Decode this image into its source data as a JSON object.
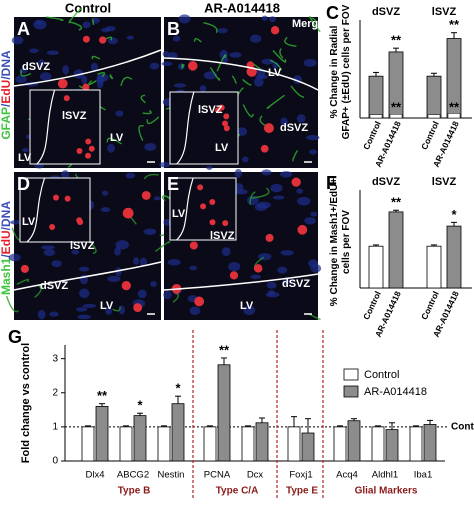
{
  "column_headers": [
    "Control",
    "AR-A014418"
  ],
  "row_labels": [
    [
      {
        "text": "GFAP",
        "color": "#3ec43e"
      },
      {
        "text": "/",
        "color": "#3b4fb8"
      },
      {
        "text": "EdU",
        "color": "#e0202a"
      },
      {
        "text": "/DNA",
        "color": "#3b4fb8"
      }
    ],
    [
      {
        "text": "Mash1",
        "color": "#3ec43e"
      },
      {
        "text": "/",
        "color": "#3b4fb8"
      },
      {
        "text": "EdU",
        "color": "#e0202a"
      },
      {
        "text": "/DNA",
        "color": "#3b4fb8"
      }
    ]
  ],
  "image_panels": [
    {
      "letter": "A",
      "texts": [
        "dSVZ",
        "lSVZ",
        "LV",
        "LV"
      ]
    },
    {
      "letter": "B",
      "texts": [
        "Merge",
        "lSVZ",
        "dSVZ",
        "LV",
        "LV"
      ]
    },
    {
      "letter": "D",
      "texts": [
        "LV",
        "lSVZ",
        "dSVZ",
        "LV"
      ]
    },
    {
      "letter": "E",
      "texts": [
        "LV",
        "lSVZ",
        "dSVZ",
        "LV"
      ]
    }
  ],
  "chart_data": [
    {
      "type": "bar",
      "letter": "C",
      "ylabel": [
        "% Change in Radial",
        "GFAP+ (±EdU) cells per FOV"
      ],
      "categories": [
        "Control",
        "AR-A014418"
      ],
      "colors": [
        "#8c8c8c",
        "#8c8c8c"
      ],
      "inner_color": "#ffffff",
      "ylim": [
        0,
        220
      ],
      "groups": [
        {
          "name": "dSVZ",
          "values": [
            100,
            158
          ],
          "errors": [
            9,
            9
          ],
          "inner_values": [
            8,
            9
          ],
          "annotations": [
            null,
            "**"
          ],
          "inner_annotations": [
            null,
            "**"
          ]
        },
        {
          "name": "lSVZ",
          "values": [
            100,
            190
          ],
          "errors": [
            7,
            14
          ],
          "inner_values": [
            8,
            11
          ],
          "annotations": [
            null,
            "**"
          ],
          "inner_annotations": [
            null,
            "**"
          ]
        }
      ]
    },
    {
      "type": "bar",
      "letter": "F",
      "ylabel": [
        "% Change in Mash1+/EdU+",
        "cells per FOV"
      ],
      "categories": [
        "Control",
        "AR-A014418"
      ],
      "colors": [
        "#ffffff",
        "#8c8c8c"
      ],
      "ylim": [
        0,
        220
      ],
      "groups": [
        {
          "name": "dSVZ",
          "values": [
            100,
            182
          ],
          "errors": [
            3,
            4
          ],
          "annotations": [
            null,
            "**"
          ]
        },
        {
          "name": "lSVZ",
          "values": [
            100,
            148
          ],
          "errors": [
            3,
            9
          ],
          "annotations": [
            null,
            "*"
          ]
        }
      ]
    },
    {
      "type": "grouped_bar",
      "letter": "G",
      "ylabel": "Fold change vs control",
      "groups": [
        {
          "name": "Type B",
          "categories": [
            "Dlx4",
            "ABCG2",
            "Nestin"
          ]
        },
        {
          "name": "Type C/A",
          "categories": [
            "PCNA",
            "Dcx"
          ]
        },
        {
          "name": "Type E",
          "categories": [
            "Foxj1"
          ]
        },
        {
          "name": "Glial Markers",
          "categories": [
            "Acq4",
            "Aldhl1",
            "Iba1"
          ]
        }
      ],
      "series": [
        {
          "name": "Control",
          "color": "#ffffff",
          "values": [
            1,
            1,
            1,
            1,
            1,
            1,
            1,
            1,
            1
          ],
          "errors": [
            0.03,
            0.03,
            0.03,
            0.03,
            0.03,
            0.3,
            0.03,
            0.03,
            0.03
          ]
        },
        {
          "name": "AR-A014418",
          "color": "#8c8c8c",
          "values": [
            1.6,
            1.33,
            1.68,
            2.82,
            1.12,
            0.82,
            1.18,
            0.92,
            1.07
          ],
          "errors": [
            0.08,
            0.07,
            0.22,
            0.2,
            0.14,
            0.42,
            0.06,
            0.2,
            0.12
          ],
          "annotations": [
            "**",
            "*",
            "*",
            "**",
            null,
            null,
            null,
            null,
            null
          ]
        }
      ],
      "ylim": [
        0,
        3.4
      ],
      "yticks": [
        0,
        1,
        2,
        3
      ],
      "reference_line": {
        "value": 1,
        "label": "Control"
      },
      "group_label_color": "#8b1a1a",
      "divider_color": "#b22222"
    }
  ]
}
